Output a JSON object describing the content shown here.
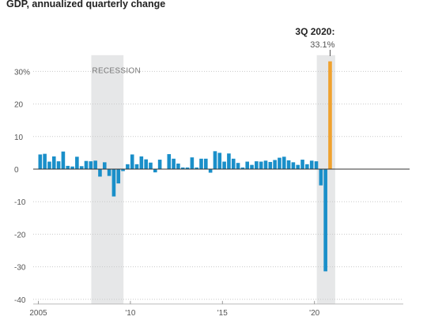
{
  "chart_data": {
    "type": "bar",
    "title": "GDP, annualized quarterly change",
    "xlabel": "",
    "ylabel": "",
    "ylim": [
      -40,
      35
    ],
    "yticks": [
      {
        "value": 30,
        "label": "30%"
      },
      {
        "value": 20,
        "label": "20"
      },
      {
        "value": 10,
        "label": "10"
      },
      {
        "value": 0,
        "label": "0"
      },
      {
        "value": -10,
        "label": "-10"
      },
      {
        "value": -20,
        "label": "-20"
      },
      {
        "value": -30,
        "label": "-30"
      },
      {
        "value": -40,
        "label": "-40"
      }
    ],
    "xticks": [
      {
        "quarter_index": 0,
        "label": "2005"
      },
      {
        "quarter_index": 20,
        "label": "'10"
      },
      {
        "quarter_index": 40,
        "label": "'15"
      },
      {
        "quarter_index": 60,
        "label": "'20"
      }
    ],
    "first_quarter": "2005 Q1",
    "series": [
      {
        "color": "#1a8fc9",
        "values": [
          4.5,
          4.7,
          2.3,
          3.9,
          2.4,
          5.4,
          1.0,
          0.8,
          3.8,
          0.9,
          2.5,
          2.4,
          2.6,
          -2.3,
          2.1,
          -2.1,
          -8.4,
          -4.4,
          -0.6,
          1.5,
          4.5,
          1.5,
          3.9,
          3.0,
          2.0,
          -1.0,
          2.9,
          -0.1,
          4.6,
          3.2,
          1.7,
          0.5,
          0.5,
          3.6,
          0.5,
          3.2,
          3.2,
          -1.1,
          5.5,
          5.0,
          2.3,
          4.8,
          3.2,
          1.9,
          0.5,
          2.3,
          1.3,
          2.4,
          2.3,
          2.6,
          2.2,
          2.8,
          3.5,
          3.8,
          2.7,
          2.1,
          1.3,
          2.9,
          1.5,
          2.6,
          2.4,
          -5.0,
          -31.4
        ],
        "highlight": {
          "index": 63,
          "value": 33.1,
          "color": "#f0a22e"
        }
      }
    ],
    "shaded_regions": [
      {
        "label": "RECESSION",
        "start_quarter_index": 11.5,
        "end_quarter_index": 18.5
      },
      {
        "label": "",
        "start_quarter_index": 60.5,
        "end_quarter_index": 64.5
      }
    ],
    "callout": {
      "title": "3Q 2020:",
      "value": "33.1%"
    },
    "grid": "horizontal dotted",
    "legend": "none"
  }
}
